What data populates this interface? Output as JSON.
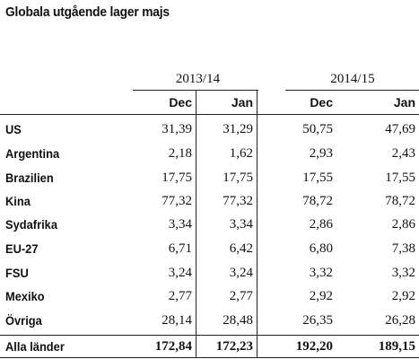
{
  "title": "Globala utgående lager majs",
  "groups": [
    "2013/14",
    "2014/15"
  ],
  "columns": [
    "Dec",
    "Jan",
    "Dec",
    "Jan"
  ],
  "rows": [
    {
      "label": "US",
      "values": [
        "31,39",
        "31,29",
        "50,75",
        "47,69"
      ]
    },
    {
      "label": "Argentina",
      "values": [
        "2,18",
        "1,62",
        "2,93",
        "2,43"
      ]
    },
    {
      "label": "Brazilien",
      "values": [
        "17,75",
        "17,75",
        "17,55",
        "17,55"
      ]
    },
    {
      "label": "Kina",
      "values": [
        "77,32",
        "77,32",
        "78,72",
        "78,72"
      ]
    },
    {
      "label": "Sydafrika",
      "values": [
        "3,34",
        "3,34",
        "2,86",
        "2,86"
      ]
    },
    {
      "label": "EU-27",
      "values": [
        "6,71",
        "6,42",
        "6,80",
        "7,38"
      ]
    },
    {
      "label": "FSU",
      "values": [
        "3,24",
        "3,24",
        "3,32",
        "3,32"
      ]
    },
    {
      "label": "Mexiko",
      "values": [
        "2,77",
        "2,77",
        "2,92",
        "2,92"
      ]
    },
    {
      "label": "Övriga",
      "values": [
        "28,14",
        "28,48",
        "26,35",
        "26,28"
      ]
    }
  ],
  "total": {
    "label": "Alla länder",
    "values": [
      "172,84",
      "172,23",
      "192,20",
      "189,15"
    ]
  }
}
